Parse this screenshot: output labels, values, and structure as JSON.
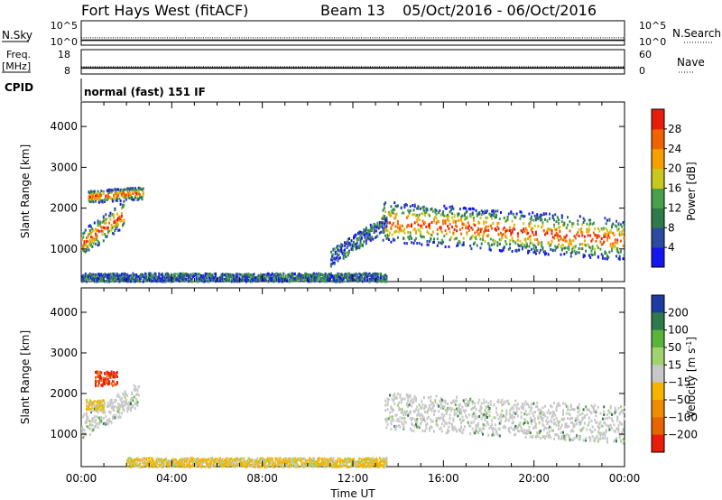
{
  "header": {
    "radar": "Fort Hays West (fitACF)",
    "beam": "Beam 13",
    "date_range": "05/Oct/2016 - 06/Oct/2016"
  },
  "chart_data": [
    {
      "type": "line",
      "id": "nsky",
      "left_label": "N.Sky",
      "right_label": "N.Search",
      "left_ticks": [
        "10^5",
        "10^0"
      ],
      "right_ticks": [
        "10^5",
        "10^0"
      ],
      "x_range_hours": [
        0,
        24
      ],
      "series": [
        {
          "name": "N.Sky",
          "style": "solid",
          "x": [
            0,
            2,
            4,
            6,
            8,
            10,
            12,
            14,
            16,
            18,
            20,
            22,
            24
          ],
          "values": [
            2,
            2,
            2,
            2,
            2,
            2,
            2,
            2,
            2,
            2,
            2,
            2,
            2
          ]
        },
        {
          "name": "N.Search",
          "style": "dotted",
          "x": [
            0,
            2,
            4,
            6,
            8,
            10,
            12,
            14,
            16,
            18,
            20,
            22,
            24
          ],
          "values": [
            3,
            3,
            3,
            3,
            3,
            3,
            3,
            3,
            3,
            3,
            3,
            3,
            3
          ]
        }
      ]
    },
    {
      "type": "line",
      "id": "freq",
      "left_label": "Freq.",
      "left_unit": "[MHz]",
      "right_label": "Nave",
      "left_ticks": [
        "18",
        "8"
      ],
      "right_ticks": [
        "60",
        "0"
      ],
      "x_range_hours": [
        0,
        24
      ],
      "series": [
        {
          "name": "Freq.",
          "style": "solid",
          "x": [
            0,
            2,
            4,
            8,
            12,
            16,
            20,
            24
          ],
          "values": [
            10.5,
            10.5,
            10.5,
            10.5,
            10.5,
            10.5,
            10.5,
            10.5
          ]
        },
        {
          "name": "Nave",
          "style": "dotted",
          "x": [
            0,
            2,
            4,
            8,
            12,
            16,
            20,
            24
          ],
          "values": [
            11,
            11,
            11,
            11,
            11,
            11,
            11,
            11
          ]
        }
      ]
    },
    {
      "type": "text",
      "id": "cpid",
      "label": "CPID",
      "value": "normal (fast) 151 IF"
    },
    {
      "type": "heatmap",
      "id": "power",
      "ylabel": "Slant Range [km]",
      "y_ticks": [
        1000,
        2000,
        3000,
        4000
      ],
      "ylim": [
        200,
        4600
      ],
      "x_range_hours": [
        0,
        24
      ],
      "colorbar": {
        "label": "Power [dB]",
        "ticks": [
          "4",
          "8",
          "12",
          "16",
          "20",
          "24",
          "28"
        ],
        "colors": [
          "#1515f0",
          "#2b4aa0",
          "#2e7a4a",
          "#4aa04a",
          "#c8c81e",
          "#f5a000",
          "#f06400",
          "#e81e0a"
        ]
      },
      "regions": [
        {
          "x": [
            0.0,
            1.9
          ],
          "y_center_km": [
            1150,
            1900
          ],
          "halfwidth_km": 320,
          "level": "mixed"
        },
        {
          "x": [
            0.3,
            2.7
          ],
          "y_center_km": [
            2300,
            2400
          ],
          "halfwidth_km": 150,
          "level": "mixed"
        },
        {
          "x": [
            13.3,
            24.0
          ],
          "y_center_km": [
            1700,
            1250
          ],
          "halfwidth_km": 500,
          "level": "mixed"
        },
        {
          "x": [
            0.0,
            13.5
          ],
          "y_center_km": [
            330,
            330
          ],
          "halfwidth_km": 100,
          "level": "low"
        },
        {
          "x": [
            11.0,
            13.5
          ],
          "y_center_km": [
            800,
            1700
          ],
          "halfwidth_km": 200,
          "level": "low"
        }
      ]
    },
    {
      "type": "heatmap",
      "id": "velocity",
      "ylabel": "Slant Range [km]",
      "xlabel": "Time UT",
      "y_ticks": [
        1000,
        2000,
        3000,
        4000
      ],
      "ylim": [
        200,
        4600
      ],
      "x_ticks": [
        "00:00",
        "04:00",
        "08:00",
        "12:00",
        "16:00",
        "20:00",
        "00:00"
      ],
      "x_range_hours": [
        0,
        24
      ],
      "colorbar": {
        "label": "Velocity [m s^-1]",
        "ticks": [
          "200",
          "100",
          "50",
          "15",
          "-15",
          "-50",
          "-100",
          "-200"
        ],
        "colors": [
          "#1e3ca0",
          "#2e7a4a",
          "#5ab43c",
          "#a0d26e",
          "#c8c8c8",
          "#f5b400",
          "#f08c00",
          "#e86400",
          "#e81e0a"
        ]
      },
      "regions": [
        {
          "x": [
            0.0,
            2.5
          ],
          "y_center_km": [
            1200,
            2000
          ],
          "halfwidth_km": 300,
          "level": "ground"
        },
        {
          "x": [
            0.2,
            1.0
          ],
          "y_center_km": [
            1750,
            1750
          ],
          "halfwidth_km": 120,
          "level": "negative"
        },
        {
          "x": [
            0.6,
            1.6
          ],
          "y_center_km": [
            2400,
            2400
          ],
          "halfwidth_km": 180,
          "level": "strong-negative"
        },
        {
          "x": [
            13.4,
            24.0
          ],
          "y_center_km": [
            1600,
            1250
          ],
          "halfwidth_km": 450,
          "level": "ground"
        },
        {
          "x": [
            2.0,
            13.5
          ],
          "y_center_km": [
            330,
            330
          ],
          "halfwidth_km": 110,
          "level": "negative"
        }
      ]
    }
  ]
}
